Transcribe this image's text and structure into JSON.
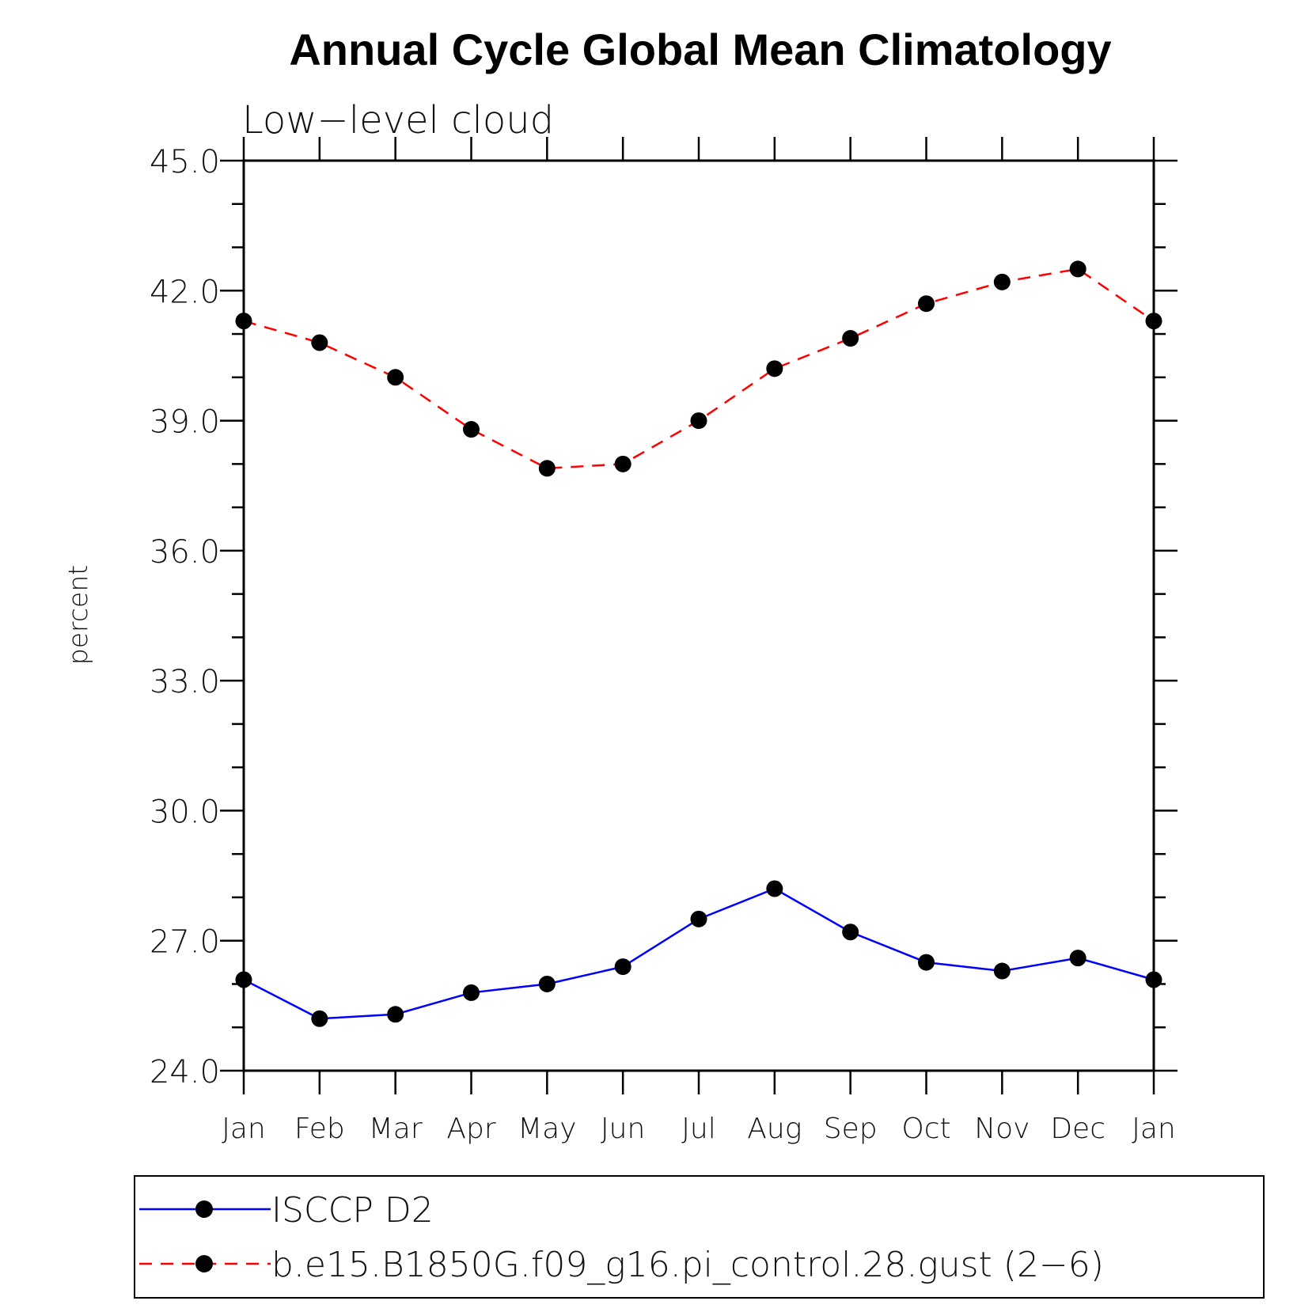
{
  "chart_data": {
    "type": "line",
    "title": "Annual Cycle Global Mean Climatology",
    "subtitle": "Low−level cloud",
    "ylabel": "percent",
    "xlabel": "",
    "ylim": [
      24.0,
      45.0
    ],
    "yticks": [
      "24.0",
      "27.0",
      "30.0",
      "33.0",
      "36.0",
      "39.0",
      "42.0",
      "45.0"
    ],
    "ytick_values": [
      24,
      27,
      30,
      33,
      36,
      39,
      42,
      45
    ],
    "categories": [
      "Jan",
      "Feb",
      "Mar",
      "Apr",
      "May",
      "Jun",
      "Jul",
      "Aug",
      "Sep",
      "Oct",
      "Nov",
      "Dec",
      "Jan"
    ],
    "series": [
      {
        "name": "ISCCP D2",
        "color": "#0000ff",
        "dash": "solid",
        "marker": "filled-circle",
        "values": [
          26.1,
          25.2,
          25.3,
          25.8,
          26.0,
          26.4,
          27.5,
          28.2,
          27.2,
          26.5,
          26.3,
          26.6,
          26.1
        ]
      },
      {
        "name": "b.e15.B1850G.f09_g16.pi_control.28.gust (2−6)",
        "color": "#ff0000",
        "dash": "dashed",
        "marker": "filled-circle",
        "values": [
          41.3,
          40.8,
          40.0,
          38.8,
          37.9,
          38.0,
          39.0,
          40.2,
          40.9,
          41.7,
          42.2,
          42.5,
          41.3
        ]
      }
    ],
    "legend_position": "bottom"
  }
}
